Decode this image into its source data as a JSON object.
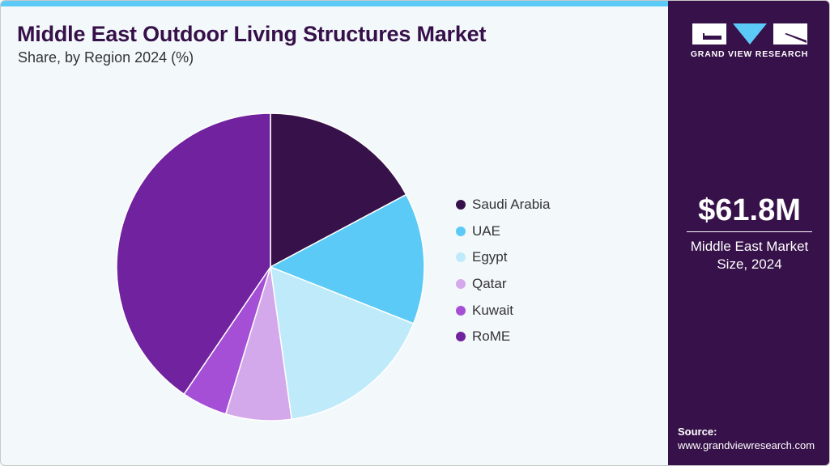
{
  "header": {
    "title": "Middle East Outdoor Living Structures Market",
    "subtitle": "Share, by Region 2024 (%)"
  },
  "brand": {
    "name": "GRAND VIEW RESEARCH",
    "logo_icon": "gvr-logo-icon"
  },
  "sidebar": {
    "market_value": "$61.8M",
    "market_label_line1": "Middle East Market",
    "market_label_line2": "Size, 2024",
    "source_title": "Source:",
    "source_url": "www.grandviewresearch.com"
  },
  "colors": {
    "accent_bar": "#5ccaf6",
    "sidebar_bg": "#371149",
    "title": "#361049",
    "background": "#f3f8fb"
  },
  "chart_data": {
    "type": "pie",
    "title": "Middle East Outdoor Living Structures Market",
    "subtitle": "Share, by Region 2024 (%)",
    "categories": [
      "Saudi Arabia",
      "UAE",
      "Egypt",
      "Qatar",
      "Kuwait",
      "RoME"
    ],
    "values": [
      17.2,
      13.8,
      16.8,
      6.9,
      4.8,
      40.5
    ],
    "colors": [
      "#371149",
      "#5ccaf6",
      "#bfeafa",
      "#d4a9ec",
      "#a44fd5",
      "#71229e"
    ],
    "start_angle_deg": 0,
    "direction": "clockwise",
    "legend_position": "right",
    "data_labels": false
  },
  "legend": {
    "items": [
      {
        "label": "Saudi Arabia",
        "color": "#371149"
      },
      {
        "label": "UAE",
        "color": "#5ccaf6"
      },
      {
        "label": "Egypt",
        "color": "#bfeafa"
      },
      {
        "label": "Qatar",
        "color": "#d4a9ec"
      },
      {
        "label": "Kuwait",
        "color": "#a44fd5"
      },
      {
        "label": "RoME",
        "color": "#71229e"
      }
    ]
  }
}
